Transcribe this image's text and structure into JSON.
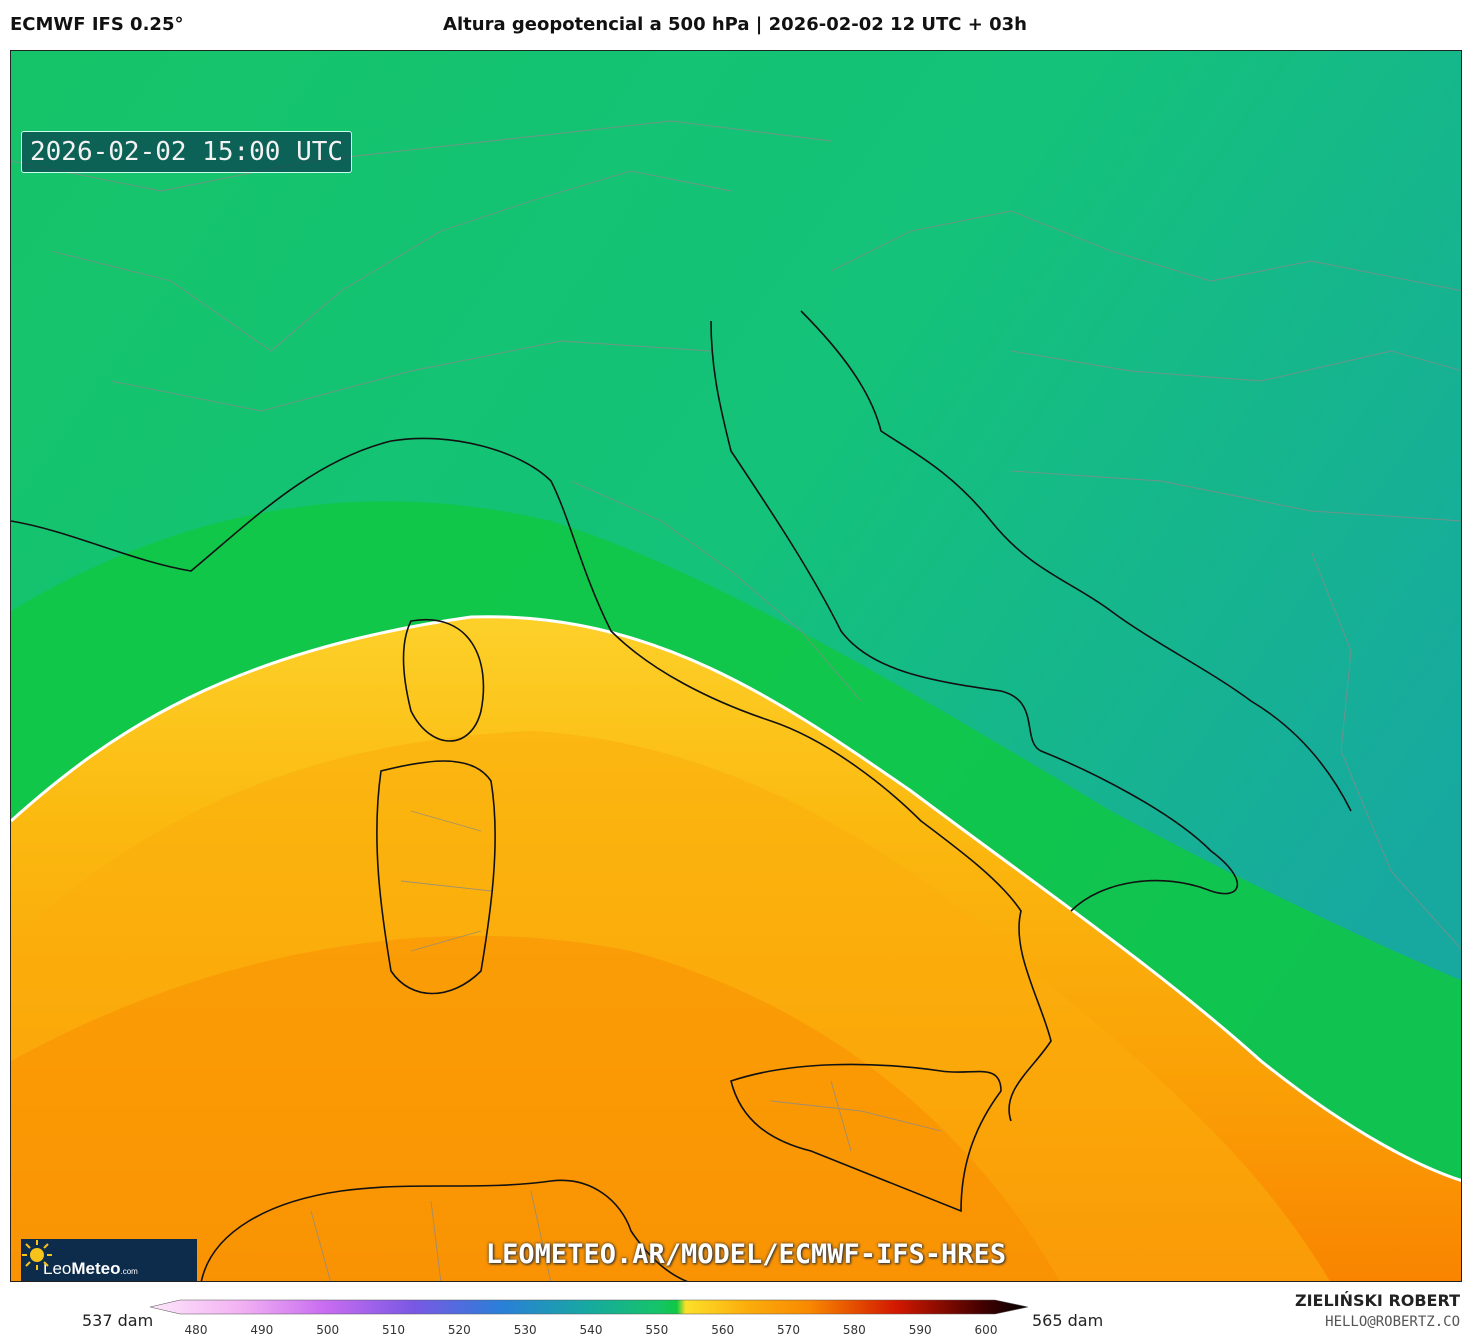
{
  "header": {
    "model": "ECMWF IFS 0.25°",
    "title": "Altura geopotencial a 500 hPa | 2026-02-02 12 UTC + 03h"
  },
  "map": {
    "valid_time": "2026-02-02 15:00 UTC",
    "watermark": "LEOMETEO.AR/MODEL/ECMWF-IFS-HRES",
    "contour_color": "#ffffff",
    "field_colors": {
      "green_dark": "#0fc843",
      "green": "#15c468",
      "teal": "#18b98d",
      "yellow": "#fdd62c",
      "orange": "#fbad0c",
      "orange_dark": "#f98900"
    }
  },
  "logo": {
    "brand_light": "Leo",
    "brand_bold": "Meteo",
    "suffix": ".com"
  },
  "legend": {
    "min_label": "537 dam",
    "max_label": "565 dam",
    "ticks": [
      "480",
      "490",
      "500",
      "510",
      "520",
      "530",
      "540",
      "550",
      "560",
      "570",
      "580",
      "590",
      "600"
    ]
  },
  "credits": {
    "author": "ZIELIŃSKI ROBERT",
    "email": "HELLO@ROBERTZ.CO"
  }
}
